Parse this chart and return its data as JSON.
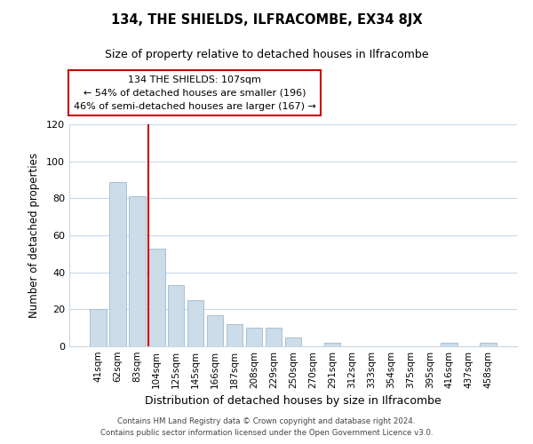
{
  "title": "134, THE SHIELDS, ILFRACOMBE, EX34 8JX",
  "subtitle": "Size of property relative to detached houses in Ilfracombe",
  "xlabel": "Distribution of detached houses by size in Ilfracombe",
  "ylabel": "Number of detached properties",
  "bar_labels": [
    "41sqm",
    "62sqm",
    "83sqm",
    "104sqm",
    "125sqm",
    "145sqm",
    "166sqm",
    "187sqm",
    "208sqm",
    "229sqm",
    "250sqm",
    "270sqm",
    "291sqm",
    "312sqm",
    "333sqm",
    "354sqm",
    "375sqm",
    "395sqm",
    "416sqm",
    "437sqm",
    "458sqm"
  ],
  "bar_values": [
    20,
    89,
    81,
    53,
    33,
    25,
    17,
    12,
    10,
    10,
    5,
    0,
    2,
    0,
    0,
    0,
    0,
    0,
    2,
    0,
    2
  ],
  "bar_color": "#ccdce8",
  "bar_edge_color": "#a8c0d4",
  "highlight_bar_index": 3,
  "highlight_line_color": "#cc0000",
  "ylim": [
    0,
    120
  ],
  "yticks": [
    0,
    20,
    40,
    60,
    80,
    100,
    120
  ],
  "annotation_text": "134 THE SHIELDS: 107sqm\n← 54% of detached houses are smaller (196)\n46% of semi-detached houses are larger (167) →",
  "annotation_box_color": "#ffffff",
  "annotation_box_edge_color": "#cc0000",
  "footer_line1": "Contains HM Land Registry data © Crown copyright and database right 2024.",
  "footer_line2": "Contains public sector information licensed under the Open Government Licence v3.0.",
  "background_color": "#ffffff",
  "grid_color": "#c8d8e8"
}
